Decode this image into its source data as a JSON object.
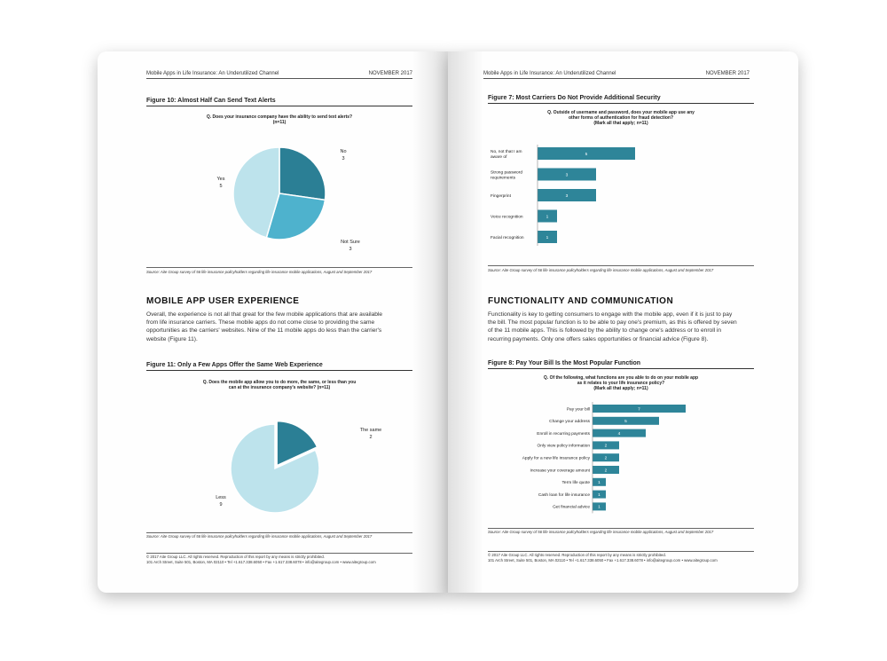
{
  "colors": {
    "teal_dark": "#2b7f95",
    "teal_mid": "#4eb2cd",
    "teal_light": "#bde3ec",
    "bar": "#2e8599"
  },
  "header": {
    "title": "Mobile Apps in Life Insurance: An Underutilized Channel",
    "date": "NOVEMBER 2017"
  },
  "left_page": {
    "fig10": {
      "title": "Figure 10: Almost Half Can Send Text Alerts",
      "question": "Q. Does your insurance company have the ability to send text alerts?",
      "n": "(n=11)",
      "slices": [
        {
          "name": "No",
          "value": 3
        },
        {
          "name": "Not Sure",
          "value": 3
        },
        {
          "name": "Yes",
          "value": 5
        }
      ],
      "source": "Source: Aite Group survey of 56 life insurance policyholders regarding life insurance mobile applications, August and September 2017"
    },
    "section_title": "MOBILE APP USER EXPERIENCE",
    "para": [
      "Overall, the experience is not all that great for the few mobile applications that are available",
      "from life insurance carriers. These mobile apps do not come close to providing the same",
      "opportunities as the carriers' websites. Nine of the 11 mobile apps do less than the carrier's",
      "website (Figure 11)."
    ],
    "fig11": {
      "title": "Figure 11: Only a Few Apps Offer the Same Web Experience",
      "question_1": "Q. Does the mobile app allow you to do more, the same, or less than you",
      "question_2": "can at the insurance company's website? (n=11)",
      "slices": [
        {
          "name": "The same",
          "value": 2
        },
        {
          "name": "Less",
          "value": 9
        }
      ],
      "source": "Source: Aite Group survey of 56 life insurance policyholders regarding life insurance mobile applications, August and September 2017"
    },
    "footer_1": "© 2017 Aite Group LLC. All rights reserved. Reproduction of this report by any means is strictly prohibited.",
    "footer_2": "101 Arch Street, Suite 501, Boston, MA 02110 • Tel +1.617.338.6050 • Fax +1.617.338.6078 • info@aitegroup.com • www.aitegroup.com"
  },
  "right_page": {
    "fig7": {
      "title": "Figure 7: Most Carriers Do Not Provide Additional Security",
      "question_1": "Q. Outside of username and password, does your mobile app use any",
      "question_2": "other forms of authentication for fraud detection?",
      "question_3": "(Mark all that apply; n=11)",
      "chart_data": {
        "type": "bar",
        "orientation": "horizontal",
        "categories": [
          "No, not that I am aware of",
          "Strong password requirements",
          "Fingerprint",
          "Voice recognition",
          "Facial recognition"
        ],
        "values": [
          5,
          3,
          3,
          1,
          1
        ]
      },
      "source": "Source: Aite Group survey of 56 life insurance policyholders regarding life insurance mobile applications, August and September 2017"
    },
    "section_title": "FUNCTIONALITY AND COMMUNICATION",
    "para": [
      "Functionality is key to getting consumers to engage with the mobile app, even if it is just to pay",
      "the bill. The most popular function is to be able to pay one's premium, as this is offered by seven",
      "of the 11 mobile apps. This is followed by the ability to change one's address or to enroll in",
      "recurring payments. Only one offers sales opportunities or financial advice (Figure 8)."
    ],
    "fig8": {
      "title": "Figure 8: Pay Your Bill Is the Most Popular Function",
      "question_1": "Q. Of the following, what functions are you able to do on your mobile app",
      "question_2": "as it relates to your life insurance policy?",
      "question_3": "(Mark all that apply; n=11)",
      "chart_data": {
        "type": "bar",
        "orientation": "horizontal",
        "categories": [
          "Pay your bill",
          "Change your address",
          "Enroll in recurring payments",
          "Only view policy information",
          "Apply for a new life insurance policy",
          "Increase your coverage amount",
          "Term life quote",
          "Cash loan for life insurance",
          "Get financial advice"
        ],
        "values": [
          7,
          5,
          4,
          2,
          2,
          2,
          1,
          1,
          1
        ]
      },
      "source": "Source: Aite Group survey of 56 life insurance policyholders regarding life insurance mobile applications, August and September 2017"
    },
    "footer_1": "© 2017 Aite Group LLC. All rights reserved. Reproduction of this report by any means is strictly prohibited.",
    "footer_2": "101 Arch Street, Suite 501, Boston, MA 02110 • Tel +1.617.338.6050 • Fax +1.617.338.6078 • info@aitegroup.com • www.aitegroup.com"
  }
}
